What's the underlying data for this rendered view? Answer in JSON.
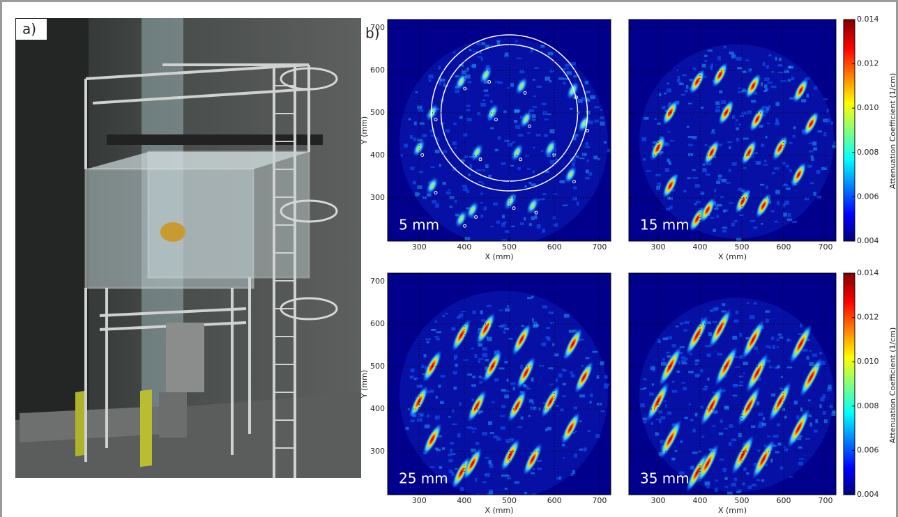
{
  "panel_a": {
    "label": "a)"
  },
  "panel_b": {
    "label": "b)",
    "x_label": "X (mm)",
    "y_label": "Y (mm)",
    "xlim": [
      230,
      725
    ],
    "ylim": [
      198,
      720
    ],
    "xticks": [
      300,
      400,
      500,
      600,
      700
    ],
    "yticks": [
      300,
      400,
      500,
      600,
      700
    ],
    "grid": true,
    "plots": [
      {
        "label": "5 mm"
      },
      {
        "label": "15 mm"
      },
      {
        "label": "25 mm"
      },
      {
        "label": "35 mm"
      }
    ],
    "colorbar": {
      "label": "Attenuation Coefficient (1/cm)",
      "lim": [
        0.004,
        0.014
      ],
      "ticks": [
        0.004,
        0.006,
        0.008,
        {
          "value": 0.01,
          "label": "0.010"
        },
        0.012,
        0.014
      ]
    }
  }
}
